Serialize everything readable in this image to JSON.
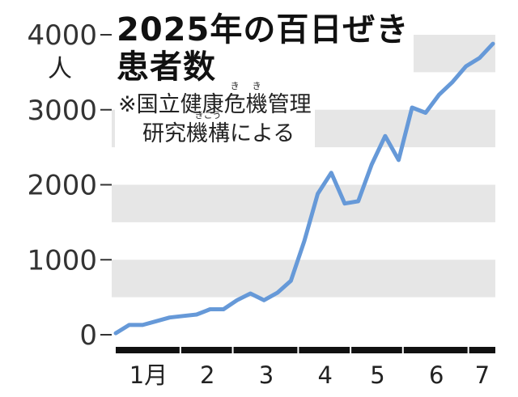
{
  "chart_data": {
    "type": "line",
    "title_lines": [
      "2025年の百日ぜき",
      "患者数"
    ],
    "note": {
      "line1_prefix": "※国立健康",
      "line1_ruby_chars": [
        {
          "base": "危",
          "ruby": "き"
        },
        {
          "base": "機",
          "ruby": "き"
        }
      ],
      "line1_suffix": "管理",
      "line2_prefix": "研究",
      "line2_ruby_base": "機構",
      "line2_ruby_text": "きこう",
      "line2_suffix": "による"
    },
    "y_unit": "人",
    "ylim": [
      0,
      4000
    ],
    "y_ticks": [
      {
        "value": 0,
        "label": "0"
      },
      {
        "value": 1000,
        "label": "1000"
      },
      {
        "value": 2000,
        "label": "2000"
      },
      {
        "value": 3000,
        "label": "3000"
      },
      {
        "value": 4000,
        "label": "4000"
      }
    ],
    "months": [
      {
        "label": "1月",
        "weeks": 5
      },
      {
        "label": "2",
        "weeks": 4
      },
      {
        "label": "3",
        "weeks": 5
      },
      {
        "label": "4",
        "weeks": 4
      },
      {
        "label": "5",
        "weeks": 4
      },
      {
        "label": "6",
        "weeks": 5
      },
      {
        "label": "7",
        "weeks": 2
      }
    ],
    "grid": "alternating horizontal bands",
    "series": [
      {
        "values": [
          20,
          130,
          130,
          180,
          230,
          250,
          270,
          340,
          340,
          460,
          550,
          460,
          560,
          720,
          1250,
          1880,
          2160,
          1750,
          1780,
          2270,
          2650,
          2330,
          3030,
          2960,
          3200,
          3370,
          3580,
          3690,
          3880
        ]
      }
    ],
    "line_color": "#6699d8",
    "band_color": "#e6e6e6"
  }
}
